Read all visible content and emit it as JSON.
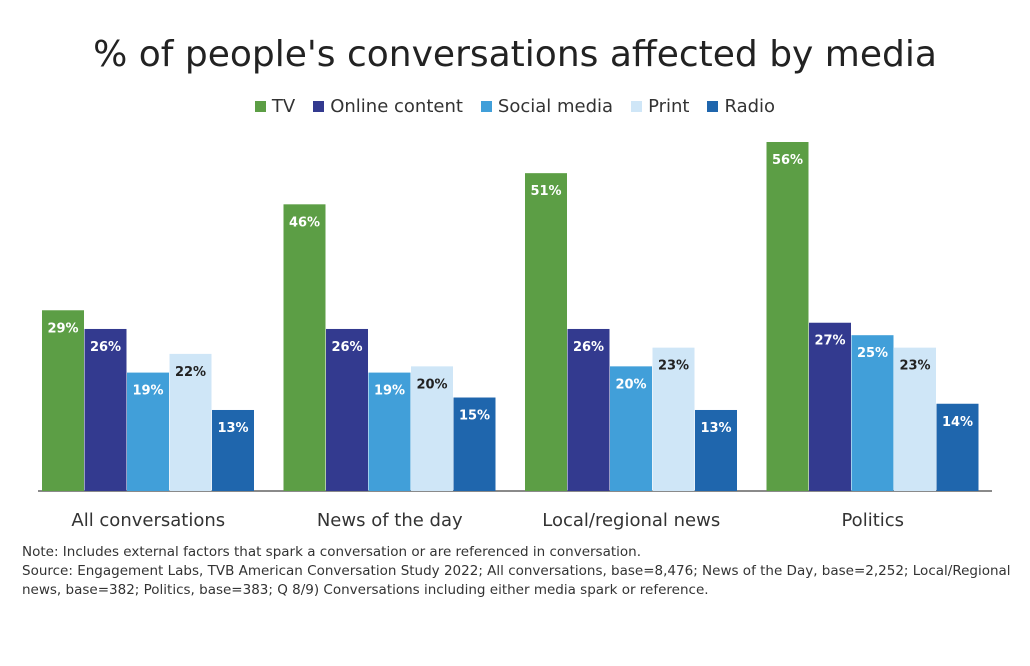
{
  "chart_data": {
    "type": "bar",
    "title": "% of people's conversations affected by media",
    "categories": [
      "All conversations",
      "News of the day",
      "Local/regional news",
      "Politics"
    ],
    "series": [
      {
        "name": "TV",
        "values": [
          29,
          46,
          51,
          56
        ],
        "color": "#5c9e45",
        "label_color": "#ffffff"
      },
      {
        "name": "Online content",
        "values": [
          26,
          26,
          26,
          27
        ],
        "color": "#333a8f",
        "label_color": "#ffffff"
      },
      {
        "name": "Social media",
        "values": [
          19,
          19,
          20,
          25
        ],
        "color": "#419fd9",
        "label_color": "#ffffff"
      },
      {
        "name": "Print",
        "values": [
          22,
          20,
          23,
          23
        ],
        "color": "#cfe6f7",
        "label_color": "#222222"
      },
      {
        "name": "Radio",
        "values": [
          13,
          15,
          13,
          14
        ],
        "color": "#1f66ad",
        "label_color": "#ffffff"
      }
    ],
    "value_suffix": "%",
    "ylim": [
      0,
      56
    ],
    "xlabel": "",
    "ylabel": "",
    "grid": false,
    "legend": "top-center"
  },
  "notes": {
    "note": "Note: Includes external factors that spark a conversation or are referenced in conversation.",
    "source": "Source: Engagement Labs, TVB American Conversation Study 2022; All conversations, base=8,476; News of the Day, base=2,252; Local/Regional news, base=382; Politics, base=383; Q 8/9) Conversations including either media spark or reference."
  }
}
